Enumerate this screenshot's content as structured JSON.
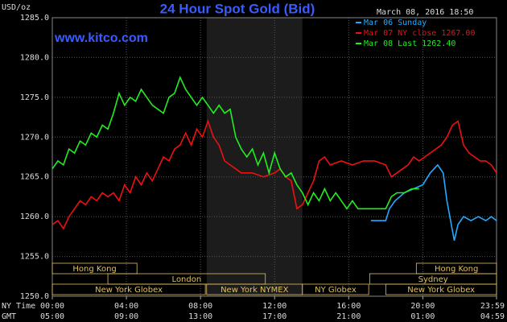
{
  "chart_data": {
    "type": "line",
    "title": "24 Hour Spot Gold (Bid)",
    "unit_label": "USD/oz",
    "site": "www.kitco.com",
    "timestamp": "March 08, 2016 18:50",
    "x_row_label": "NY Time",
    "x2_row_label": "GMT",
    "xlim": [
      0,
      23.98
    ],
    "xticks": [
      {
        "value": 0,
        "label": "00:00"
      },
      {
        "value": 4,
        "label": "04:00"
      },
      {
        "value": 8,
        "label": "08:00"
      },
      {
        "value": 12,
        "label": "12:00"
      },
      {
        "value": 16,
        "label": "16:00"
      },
      {
        "value": 20,
        "label": "20:00"
      },
      {
        "value": 23.98,
        "label": "23:59"
      }
    ],
    "x2ticks": [
      "05:00",
      "09:00",
      "13:00",
      "17:00",
      "21:00",
      "01:00",
      "04:59"
    ],
    "ylim": [
      1250,
      1285
    ],
    "yticks": [
      {
        "value": 1250,
        "label": "1250.0"
      },
      {
        "value": 1255,
        "label": "1255.0"
      },
      {
        "value": 1260,
        "label": "1260.0"
      },
      {
        "value": 1265,
        "label": "1265.0"
      },
      {
        "value": 1270,
        "label": "1270.0"
      },
      {
        "value": 1275,
        "label": "1275.0"
      },
      {
        "value": 1280,
        "label": "1280.0"
      },
      {
        "value": 1285,
        "label": "1285.0"
      }
    ],
    "grid": true,
    "highlight_session": "New York NYMEX",
    "sessions": [
      [
        {
          "label": "Hong Kong",
          "start": 0,
          "end": 4.57
        },
        {
          "label": "Hong Kong",
          "start": 19.65,
          "end": 23.98
        }
      ],
      [
        {
          "label": "London",
          "start": 3,
          "end": 11.5
        },
        {
          "label": "Sydney",
          "start": 17.13,
          "end": 23.98
        }
      ],
      [
        {
          "label": "New York Globex",
          "start": 0,
          "end": 8.26
        },
        {
          "label": "New York NYMEX",
          "start": 8.33,
          "end": 13.5
        },
        {
          "label": "NY Globex",
          "start": 13.5,
          "end": 17.08
        },
        {
          "label": "New York Globex",
          "start": 18.0,
          "end": 23.98
        }
      ]
    ],
    "series": [
      {
        "name": "Mar 06 Sunday",
        "color": "#22aaff",
        "x": [
          17.2,
          18.0,
          18.2,
          18.5,
          19.0,
          19.5,
          20.0,
          20.4,
          20.8,
          21.1,
          21.3,
          21.5,
          21.7,
          21.9,
          22.2,
          22.6,
          23.0,
          23.4,
          23.7,
          23.98
        ],
        "values": [
          1259.5,
          1259.5,
          1261,
          1262,
          1263,
          1263.5,
          1264,
          1265.5,
          1266.5,
          1265.5,
          1262,
          1259.5,
          1257,
          1259,
          1260,
          1259.5,
          1260,
          1259.5,
          1260,
          1259.5
        ]
      },
      {
        "name": "Mar 07 NY close 1267.00",
        "color": "#ee1111",
        "x": [
          0,
          0.3,
          0.6,
          0.9,
          1.2,
          1.5,
          1.8,
          2.1,
          2.4,
          2.7,
          3.0,
          3.3,
          3.6,
          3.9,
          4.2,
          4.5,
          4.8,
          5.1,
          5.4,
          5.7,
          6.0,
          6.3,
          6.6,
          6.9,
          7.2,
          7.5,
          7.8,
          8.1,
          8.4,
          8.7,
          9.0,
          9.3,
          9.6,
          9.9,
          10.2,
          10.8,
          11.4,
          12.0,
          12.3,
          12.6,
          12.9,
          13.2,
          13.5,
          13.8,
          14.1,
          14.4,
          14.7,
          15.0,
          15.6,
          16.2,
          16.8,
          17.4,
          18.0,
          18.3,
          18.6,
          18.9,
          19.2,
          19.5,
          19.8,
          20.1,
          20.4,
          20.7,
          21.0,
          21.3,
          21.6,
          21.9,
          22.2,
          22.5,
          22.8,
          23.1,
          23.4,
          23.7,
          23.98
        ],
        "values": [
          1259,
          1259.5,
          1258.5,
          1260,
          1261,
          1262,
          1261.5,
          1262.5,
          1262,
          1263,
          1262.5,
          1263,
          1262,
          1264,
          1263,
          1265,
          1264,
          1265.5,
          1264.5,
          1266,
          1267.5,
          1267,
          1268.5,
          1269,
          1270.5,
          1269,
          1271,
          1270,
          1272,
          1270,
          1269,
          1267,
          1266.5,
          1266,
          1265.5,
          1265.5,
          1265,
          1265.5,
          1266,
          1265,
          1264.5,
          1261,
          1261.5,
          1263,
          1264.5,
          1267,
          1267.5,
          1266.5,
          1267,
          1266.5,
          1267,
          1267,
          1266.5,
          1265,
          1265.5,
          1266,
          1266.5,
          1267.5,
          1267,
          1267.5,
          1268,
          1268.5,
          1269,
          1270,
          1271.5,
          1272,
          1269,
          1268,
          1267.5,
          1267,
          1267,
          1266.5,
          1265.5
        ]
      },
      {
        "name": "Mar 08 Last 1262.40",
        "color": "#22ee22",
        "x": [
          0,
          0.3,
          0.6,
          0.9,
          1.2,
          1.5,
          1.8,
          2.1,
          2.4,
          2.7,
          3.0,
          3.3,
          3.6,
          3.9,
          4.2,
          4.5,
          4.8,
          5.1,
          5.4,
          5.7,
          6.0,
          6.3,
          6.6,
          6.9,
          7.2,
          7.5,
          7.8,
          8.1,
          8.4,
          8.7,
          9.0,
          9.3,
          9.6,
          9.9,
          10.2,
          10.5,
          10.8,
          11.1,
          11.4,
          11.7,
          12.0,
          12.3,
          12.6,
          12.9,
          13.2,
          13.5,
          13.8,
          14.1,
          14.4,
          14.7,
          15.0,
          15.3,
          15.6,
          15.9,
          16.2,
          16.5,
          17.0,
          18.0,
          18.3,
          18.6,
          19.0,
          19.4,
          19.8
        ],
        "values": [
          1266,
          1267,
          1266.5,
          1268.5,
          1268,
          1269.5,
          1269,
          1270.5,
          1270,
          1271.5,
          1271,
          1273,
          1275.5,
          1274,
          1275,
          1274.5,
          1276,
          1275,
          1274,
          1273.5,
          1273,
          1275,
          1275.5,
          1277.5,
          1276,
          1275,
          1274,
          1275,
          1274,
          1273,
          1274,
          1273,
          1273.5,
          1270,
          1268.5,
          1267.5,
          1268.5,
          1266.5,
          1268,
          1265.5,
          1268,
          1266,
          1265,
          1265.5,
          1264,
          1263,
          1261.5,
          1263,
          1262,
          1263.5,
          1262,
          1263,
          1262,
          1261,
          1262,
          1261,
          1261,
          1261,
          1262.5,
          1263,
          1263,
          1263.5,
          1263.5
        ]
      }
    ]
  }
}
